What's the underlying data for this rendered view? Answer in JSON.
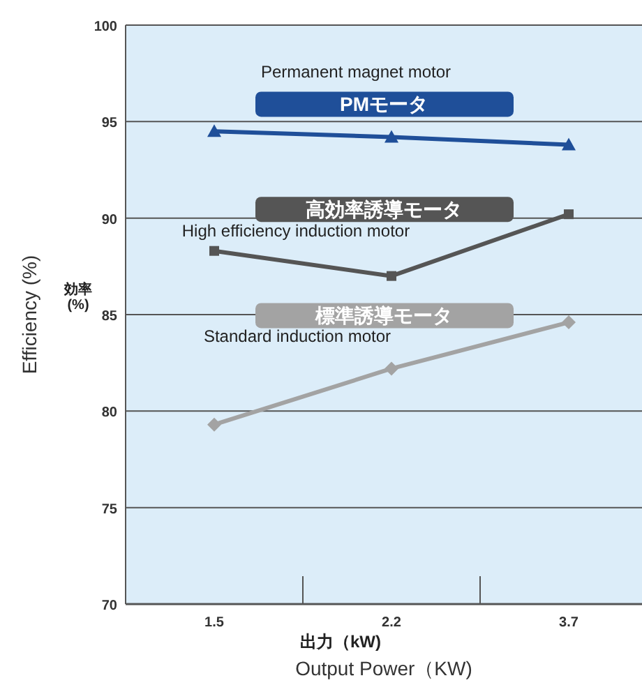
{
  "chart_data": {
    "type": "line",
    "xlabel": "Output Power（KW)",
    "ylabel": "Efficiency (%)",
    "categories": [
      "1.5",
      "2.2",
      "3.7"
    ],
    "series": [
      {
        "name": "PMモータ",
        "color": "#1f4f99",
        "marker": "triangle",
        "values": [
          94.5,
          94.2,
          93.8
        ]
      },
      {
        "name": "高効率誘導モータ",
        "color": "#555555",
        "marker": "square",
        "values": [
          88.3,
          87.0,
          90.2
        ]
      },
      {
        "name": "標準誘導モータ",
        "color": "#a3a3a3",
        "marker": "diamond",
        "values": [
          79.3,
          82.2,
          84.6
        ]
      }
    ],
    "annotations": [
      "Permanent magnet motor",
      "High efficiency induction motor",
      "Standard induction motor",
      "効率\n(%)",
      "出力（kW)"
    ],
    "ylim": [
      70,
      100
    ],
    "yticks": [
      70,
      75,
      80,
      85,
      90,
      95,
      100
    ],
    "grid": "y",
    "line_style": "solid"
  }
}
